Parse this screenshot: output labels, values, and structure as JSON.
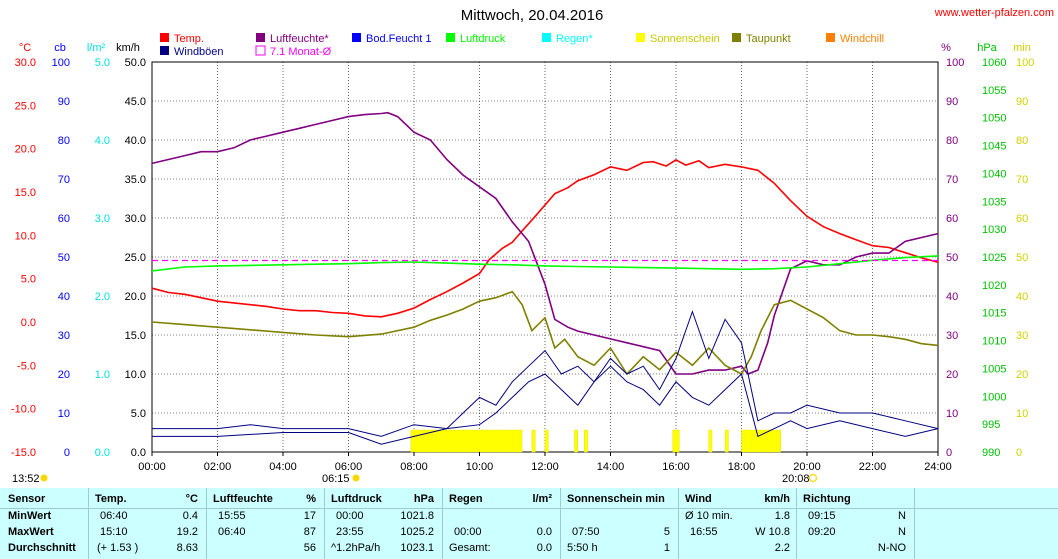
{
  "title": "Mittwoch, 20.04.2016",
  "website": "www.wetter-pfalzen.com",
  "legend": [
    {
      "label": "Temp.",
      "color": "#ff0000",
      "row": 0,
      "col": 0,
      "style": "fill"
    },
    {
      "label": "Luftfeuchte*",
      "color": "#800080",
      "row": 0,
      "col": 1,
      "style": "fill"
    },
    {
      "label": "Bod.Feucht 1",
      "color": "#0000ff",
      "row": 0,
      "col": 2,
      "style": "fill"
    },
    {
      "label": "Luftdruck",
      "color": "#00ff00",
      "row": 0,
      "col": 3,
      "style": "fill"
    },
    {
      "label": "Regen*",
      "color": "#00ffff",
      "row": 0,
      "col": 4,
      "style": "fill"
    },
    {
      "label": "Sonnenschein",
      "color": "#ffff00",
      "row": 0,
      "col": 5,
      "style": "fill"
    },
    {
      "label": "Taupunkt",
      "color": "#808000",
      "row": 0,
      "col": 6,
      "style": "fill"
    },
    {
      "label": "Windchill",
      "color": "#ff8000",
      "row": 0,
      "col": 7,
      "style": "fill"
    },
    {
      "label": "Windböen",
      "color": "#000080",
      "row": 1,
      "col": 0,
      "style": "fill"
    },
    {
      "label": "7.1 Monat-Ø",
      "color": "#ff00ff",
      "row": 1,
      "col": 1,
      "style": "outline"
    }
  ],
  "axes": [
    {
      "unit": "°C",
      "color": "#ff0000",
      "ticks": [
        "30.0",
        "25.0",
        "20.0",
        "15.0",
        "10.0",
        "5.0",
        "0.0",
        "-5.0",
        "-10.0",
        "-15.0"
      ],
      "side": "left"
    },
    {
      "unit": "cb",
      "color": "#0000ff",
      "ticks": [
        "100",
        "90",
        "80",
        "70",
        "60",
        "50",
        "40",
        "30",
        "20",
        "10",
        "0"
      ],
      "side": "left"
    },
    {
      "unit": "l/m²",
      "color": "#00e0e0",
      "ticks": [
        "5.0",
        "",
        "4.0",
        "",
        "3.0",
        "",
        "2.0",
        "",
        "1.0",
        "",
        "0.0"
      ],
      "side": "left"
    },
    {
      "unit": "km/h",
      "color": "#000000",
      "ticks": [
        "50.0",
        "45.0",
        "40.0",
        "35.0",
        "30.0",
        "25.0",
        "20.0",
        "15.0",
        "10.0",
        "5.0",
        "0.0"
      ],
      "side": "left"
    },
    {
      "unit": "%",
      "color": "#800080",
      "ticks": [
        "100",
        "90",
        "80",
        "70",
        "60",
        "50",
        "40",
        "30",
        "20",
        "10",
        "0"
      ],
      "side": "right"
    },
    {
      "unit": "hPa",
      "color": "#00c000",
      "ticks": [
        "1060",
        "1055",
        "1050",
        "1045",
        "1040",
        "1035",
        "1030",
        "1025",
        "1020",
        "1015",
        "1010",
        "1005",
        "1000",
        "995",
        "990"
      ],
      "side": "right"
    },
    {
      "unit": "min",
      "color": "#d0d000",
      "ticks": [
        "100",
        "90",
        "80",
        "70",
        "60",
        "50",
        "40",
        "30",
        "20",
        "10",
        "0"
      ],
      "side": "right"
    }
  ],
  "x_ticks": [
    "00:00",
    "02:00",
    "04:00",
    "06:00",
    "08:00",
    "10:00",
    "12:00",
    "14:00",
    "16:00",
    "18:00",
    "20:00",
    "22:00",
    "24:00"
  ],
  "sun": {
    "moonrise": "13:52",
    "sunrise": "06:15",
    "sunset": "20:08"
  },
  "chart_data": {
    "type": "line",
    "title": "Mittwoch, 20.04.2016",
    "x_unit": "hours",
    "x_range": [
      0,
      24
    ],
    "series": [
      {
        "name": "Temp.",
        "axis": "°C",
        "range": [
          -15,
          30
        ],
        "color": "#ff0000",
        "x": [
          0,
          0.5,
          1,
          1.5,
          2,
          2.5,
          3,
          3.5,
          4,
          4.5,
          5,
          5.5,
          6,
          6.5,
          7,
          7.5,
          8,
          8.5,
          9,
          9.5,
          10,
          10.3,
          10.7,
          11,
          11.3,
          11.7,
          12,
          12.3,
          12.7,
          13,
          13.5,
          14,
          14.5,
          15,
          15.3,
          15.7,
          16,
          16.3,
          16.7,
          17,
          17.5,
          18,
          18.5,
          19,
          19.5,
          20,
          20.5,
          21,
          21.5,
          22,
          22.5,
          23,
          23.5,
          24
        ],
        "y": [
          3.9,
          3.4,
          3.2,
          2.8,
          2.4,
          2.2,
          2.0,
          1.8,
          1.5,
          1.3,
          1.3,
          1.1,
          1.0,
          0.7,
          0.6,
          1.0,
          1.6,
          2.6,
          3.5,
          4.5,
          5.6,
          7.2,
          8.5,
          9.2,
          10.5,
          12.2,
          13.5,
          14.8,
          15.5,
          16.3,
          17.0,
          17.9,
          17.5,
          18.4,
          18.5,
          18.0,
          18.7,
          18.1,
          18.6,
          17.8,
          18.2,
          17.9,
          17.5,
          16.0,
          14.0,
          12.2,
          11.0,
          10.2,
          9.5,
          8.8,
          8.6,
          8.0,
          7.4,
          6.9
        ]
      },
      {
        "name": "Luftfeuchte*",
        "axis": "%",
        "range": [
          0,
          100
        ],
        "color": "#800080",
        "x": [
          0,
          0.5,
          1,
          1.5,
          2,
          2.5,
          3,
          3.5,
          4,
          4.5,
          5,
          5.5,
          6,
          6.5,
          7,
          7.2,
          7.5,
          8,
          8.5,
          9,
          9.5,
          10,
          10.5,
          11,
          11.5,
          12,
          12.3,
          12.7,
          13,
          13.5,
          14,
          14.5,
          15,
          15.5,
          16,
          16.5,
          17,
          17.5,
          18,
          18.2,
          18.5,
          18.8,
          19,
          19.5,
          20,
          20.5,
          21,
          21.5,
          22,
          22.5,
          23,
          23.5,
          24
        ],
        "y": [
          74,
          75,
          76,
          77,
          77,
          78,
          80,
          81,
          82,
          83,
          84,
          85,
          86,
          86.5,
          86.8,
          87,
          86,
          82,
          80,
          75,
          71,
          68,
          65,
          59,
          54,
          43,
          34,
          32,
          31,
          30,
          29,
          28,
          27,
          26,
          20,
          20,
          21,
          21,
          22,
          20,
          21,
          28,
          35,
          47,
          49,
          48,
          48,
          50,
          51,
          51,
          54,
          55,
          56
        ]
      },
      {
        "name": "Luftdruck",
        "axis": "hPa",
        "range": [
          990,
          1060
        ],
        "color": "#00ff00",
        "x": [
          0,
          1,
          2,
          3,
          4,
          5,
          6,
          7,
          8,
          9,
          10,
          11,
          12,
          13,
          14,
          15,
          16,
          17,
          18,
          19,
          20,
          21,
          22,
          23,
          24
        ],
        "y": [
          1022.5,
          1023.2,
          1023.4,
          1023.5,
          1023.6,
          1023.7,
          1023.8,
          1024.0,
          1024.1,
          1023.9,
          1023.7,
          1023.6,
          1023.4,
          1023.3,
          1023.2,
          1023.1,
          1023.0,
          1022.9,
          1022.8,
          1022.9,
          1023.2,
          1023.8,
          1024.4,
          1024.9,
          1025.2
        ]
      },
      {
        "name": "Taupunkt",
        "axis": "°C",
        "range": [
          -15,
          30
        ],
        "color": "#808000",
        "x": [
          0,
          1,
          2,
          3,
          4,
          5,
          6,
          7,
          8,
          8.5,
          9,
          9.5,
          10,
          10.5,
          11,
          11.3,
          11.6,
          12,
          12.3,
          12.6,
          13,
          13.5,
          14,
          14.5,
          15,
          15.5,
          16,
          16.5,
          17,
          17.5,
          18,
          18.3,
          18.6,
          19,
          19.5,
          20,
          20.5,
          21,
          21.5,
          22,
          22.5,
          23,
          23.5,
          24
        ],
        "y": [
          0.0,
          -0.3,
          -0.6,
          -0.9,
          -1.2,
          -1.5,
          -1.7,
          -1.4,
          -0.6,
          0.2,
          0.8,
          1.5,
          2.4,
          2.8,
          3.5,
          2.0,
          -1.0,
          0.5,
          -3.0,
          -2.0,
          -4.0,
          -5.0,
          -3.0,
          -6.0,
          -4.0,
          -5.5,
          -3.5,
          -5.0,
          -3.0,
          -5.0,
          -6.0,
          -4.0,
          -1.0,
          2.0,
          2.5,
          1.5,
          0.5,
          -1.0,
          -1.5,
          -1.5,
          -1.7,
          -2.0,
          -2.5,
          -2.7
        ]
      },
      {
        "name": "Wind",
        "axis": "km/h",
        "range": [
          0,
          50
        ],
        "color": "#000080",
        "x": [
          0,
          2,
          4,
          6,
          7,
          8,
          9,
          10,
          10.5,
          11,
          11.5,
          12,
          12.5,
          13,
          13.5,
          14,
          14.5,
          15,
          15.5,
          16,
          16.5,
          17,
          17.5,
          18,
          18.5,
          19,
          19.5,
          20,
          21,
          22,
          23,
          24
        ],
        "y": [
          2,
          2,
          2.5,
          2.5,
          1,
          2,
          3,
          3.5,
          5,
          7,
          9,
          10,
          8,
          6,
          9,
          11,
          9,
          8,
          6,
          9,
          7,
          6,
          8,
          10,
          2,
          3,
          4,
          3,
          4,
          3,
          2,
          3
        ]
      },
      {
        "name": "Windböen",
        "axis": "km/h",
        "range": [
          0,
          50
        ],
        "color": "#000080",
        "x": [
          0,
          1,
          2,
          3,
          4,
          5,
          6,
          7,
          8,
          9,
          9.5,
          10,
          10.5,
          11,
          11.5,
          12,
          12.5,
          13,
          13.5,
          14,
          14.5,
          15,
          15.5,
          16,
          16.5,
          17,
          17.5,
          18,
          18.5,
          19,
          19.5,
          20,
          21,
          22,
          23,
          24
        ],
        "y": [
          3,
          3,
          3,
          3.5,
          3,
          3,
          3,
          2,
          3.5,
          3,
          5,
          7,
          6,
          9,
          11,
          13,
          10,
          11,
          9,
          12,
          10,
          11,
          8,
          12,
          18,
          12,
          17,
          14,
          4,
          5,
          5,
          6,
          5,
          5,
          4,
          3
        ]
      },
      {
        "name": "7.1 Monat-Ø",
        "axis": "°C",
        "range": [
          -15,
          30
        ],
        "color": "#ff00ff",
        "style": "dashed",
        "x": [
          0,
          24
        ],
        "y": [
          7.1,
          7.1
        ]
      }
    ],
    "sunshine_periods": [
      [
        7.9,
        11.3
      ],
      [
        11.6,
        11.7
      ],
      [
        12.0,
        12.1
      ],
      [
        12.9,
        13.0
      ],
      [
        13.2,
        13.3
      ],
      [
        15.9,
        16.1
      ],
      [
        17.0,
        17.1
      ],
      [
        17.5,
        17.6
      ],
      [
        18.0,
        19.2
      ]
    ]
  },
  "stats": {
    "header": {
      "sensor": "Sensor",
      "temp": "Temp.",
      "temp_unit": "°C",
      "hum": "Luftfeuchte",
      "hum_unit": "%",
      "press": "Luftdruck",
      "press_unit": "hPa",
      "rain": "Regen",
      "rain_unit": "l/m²",
      "sun": "Sonnenschein min",
      "wind": "Wind",
      "wind_unit": "km/h",
      "dir": "Richtung"
    },
    "min": {
      "label": "MinWert",
      "temp_time": "06:40",
      "temp": "0.4",
      "hum_time": "15:55",
      "hum": "17",
      "press_time": "00:00",
      "press": "1021.8",
      "wind_label": "Ø 10 min.",
      "wind": "1.8",
      "dir_time": "09:15",
      "dir": "N"
    },
    "max": {
      "label": "MaxWert",
      "temp_time": "15:10",
      "temp": "19.2",
      "hum_time": "06:40",
      "hum": "87",
      "press_time": "23:55",
      "press": "1025.2",
      "rain_time": "00:00",
      "rain": "0.0",
      "sun_time": "07:50",
      "sun": "5",
      "wind_time": "16:55",
      "wind": "W 10.8",
      "dir_time": "09:20",
      "dir": "N"
    },
    "avg": {
      "label": "Durchschnitt",
      "temp_trend": "(+ 1.53 )",
      "temp": "8.63",
      "hum": "56",
      "press_trend": "^1.2hPa/h",
      "press": "1023.1",
      "rain_label": "Gesamt:",
      "rain": "0.0",
      "sun_total": "5:50 h",
      "sun": "1",
      "wind": "2.2",
      "dir": "N-NO"
    }
  }
}
